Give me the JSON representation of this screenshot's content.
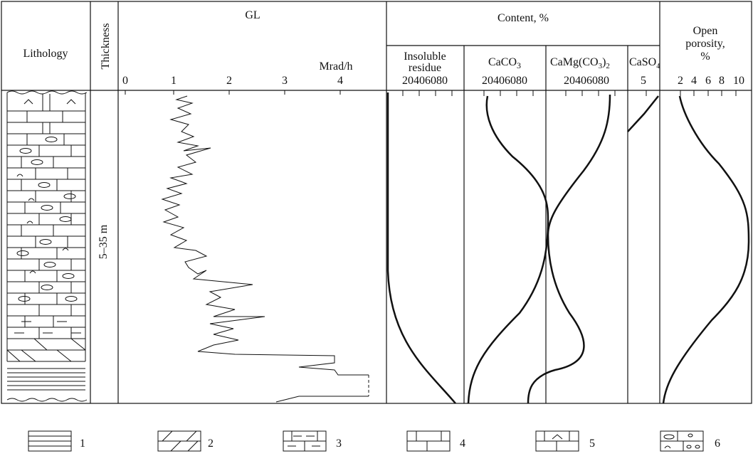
{
  "header": {
    "lithology": "Lithology",
    "thickness": "Thickness",
    "gl": "GL",
    "gl_unit": "Mrad/h",
    "gl_ticks": [
      "0",
      "1",
      "2",
      "3",
      "4"
    ],
    "content": "Content, %",
    "insoluble": [
      "Insoluble",
      "residue"
    ],
    "insoluble_ticks": "20406080",
    "caco3": {
      "main": "CaCO",
      "sub": "3"
    },
    "caco3_ticks": "20406080",
    "camg": {
      "main": "CaMg(CO",
      "sub": "3",
      "close": ")",
      "sub2": "2"
    },
    "camg_ticks": "20406080",
    "caso4": {
      "main": "CaSO",
      "sub": "4"
    },
    "caso4_ticks": "5",
    "porosity": [
      "Open",
      "porosity,",
      "%"
    ],
    "porosity_ticks": [
      "2",
      "4",
      "6",
      "8",
      "10"
    ]
  },
  "thickness_value": "5–35 m",
  "legend": [
    "1",
    "2",
    "3",
    "4",
    "5",
    "6"
  ]
}
